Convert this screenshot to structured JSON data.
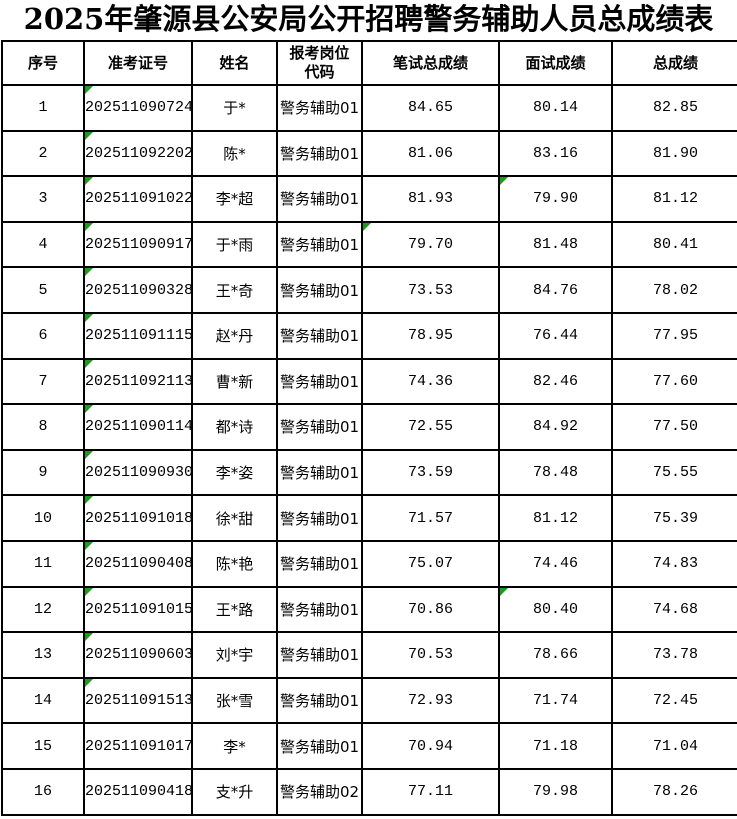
{
  "title": "2025年肇源县公安局公开招聘警务辅助人员总成绩表",
  "colors": {
    "grid": "#000000",
    "text": "#000000",
    "background": "#ffffff",
    "indicator_green": "#1e9b1e"
  },
  "table": {
    "columns": [
      {
        "label": "序号"
      },
      {
        "label": "准考证号"
      },
      {
        "label": "姓名"
      },
      {
        "label": "报考岗位",
        "label2": "代码"
      },
      {
        "label": "笔试总成绩"
      },
      {
        "label": "面试成绩"
      },
      {
        "label": "总成绩"
      }
    ],
    "rows": [
      {
        "seq": "1",
        "ticket": "202511090724",
        "name": "于*",
        "code": "警务辅助01",
        "written": "84.65",
        "interview": "80.14",
        "total": "82.85",
        "flags": {
          "ticket": true
        }
      },
      {
        "seq": "2",
        "ticket": "202511092202",
        "name": "陈*",
        "code": "警务辅助01",
        "written": "81.06",
        "interview": "83.16",
        "total": "81.90",
        "flags": {
          "ticket": true
        }
      },
      {
        "seq": "3",
        "ticket": "202511091022",
        "name": "李*超",
        "code": "警务辅助01",
        "written": "81.93",
        "interview": "79.90",
        "total": "81.12",
        "flags": {
          "ticket": true,
          "interview": true
        }
      },
      {
        "seq": "4",
        "ticket": "202511090917",
        "name": "于*雨",
        "code": "警务辅助01",
        "written": "79.70",
        "interview": "81.48",
        "total": "80.41",
        "flags": {
          "ticket": true,
          "written": true
        }
      },
      {
        "seq": "5",
        "ticket": "202511090328",
        "name": "王*奇",
        "code": "警务辅助01",
        "written": "73.53",
        "interview": "84.76",
        "total": "78.02",
        "flags": {
          "ticket": true
        }
      },
      {
        "seq": "6",
        "ticket": "202511091115",
        "name": "赵*丹",
        "code": "警务辅助01",
        "written": "78.95",
        "interview": "76.44",
        "total": "77.95",
        "flags": {
          "ticket": true
        }
      },
      {
        "seq": "7",
        "ticket": "202511092113",
        "name": "曹*新",
        "code": "警务辅助01",
        "written": "74.36",
        "interview": "82.46",
        "total": "77.60",
        "flags": {
          "ticket": true
        }
      },
      {
        "seq": "8",
        "ticket": "202511090114",
        "name": "都*诗",
        "code": "警务辅助01",
        "written": "72.55",
        "interview": "84.92",
        "total": "77.50",
        "flags": {
          "ticket": true
        }
      },
      {
        "seq": "9",
        "ticket": "202511090930",
        "name": "李*姿",
        "code": "警务辅助01",
        "written": "73.59",
        "interview": "78.48",
        "total": "75.55",
        "flags": {
          "ticket": true
        }
      },
      {
        "seq": "10",
        "ticket": "202511091018",
        "name": "徐*甜",
        "code": "警务辅助01",
        "written": "71.57",
        "interview": "81.12",
        "total": "75.39",
        "flags": {
          "ticket": true
        }
      },
      {
        "seq": "11",
        "ticket": "202511090408",
        "name": "陈*艳",
        "code": "警务辅助01",
        "written": "75.07",
        "interview": "74.46",
        "total": "74.83",
        "flags": {
          "ticket": true
        }
      },
      {
        "seq": "12",
        "ticket": "202511091015",
        "name": "王*路",
        "code": "警务辅助01",
        "written": "70.86",
        "interview": "80.40",
        "total": "74.68",
        "flags": {
          "ticket": true,
          "interview": true
        }
      },
      {
        "seq": "13",
        "ticket": "202511090603",
        "name": "刘*宇",
        "code": "警务辅助01",
        "written": "70.53",
        "interview": "78.66",
        "total": "73.78",
        "flags": {
          "ticket": true
        }
      },
      {
        "seq": "14",
        "ticket": "202511091513",
        "name": "张*雪",
        "code": "警务辅助01",
        "written": "72.93",
        "interview": "71.74",
        "total": "72.45",
        "flags": {
          "ticket": true
        }
      },
      {
        "seq": "15",
        "ticket": "202511091017",
        "name": "李*",
        "code": "警务辅助01",
        "written": "70.94",
        "interview": "71.18",
        "total": "71.04",
        "flags": {}
      },
      {
        "seq": "16",
        "ticket": "202511090418",
        "name": "支*升",
        "code": "警务辅助02",
        "written": "77.11",
        "interview": "79.98",
        "total": "78.26",
        "flags": {}
      }
    ]
  }
}
